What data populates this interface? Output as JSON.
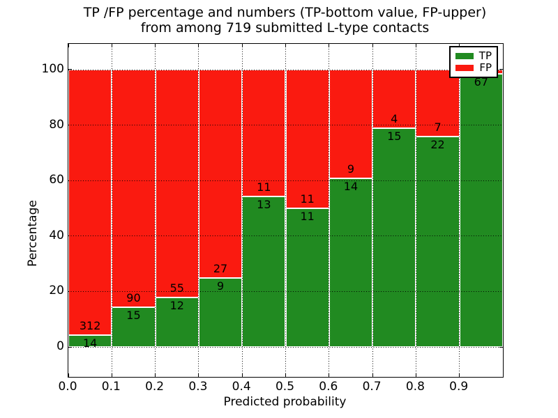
{
  "figure": {
    "title_line1": "TP /FP percentage and numbers (TP-bottom value, FP-upper)",
    "title_line2": "from among 719 submitted L-type contacts"
  },
  "axes": {
    "xlabel": "Predicted probability",
    "ylabel": "Percentage",
    "yticks": [
      0,
      20,
      40,
      60,
      80,
      100
    ],
    "xticks": [
      "0.0",
      "0.1",
      "0.2",
      "0.3",
      "0.4",
      "0.5",
      "0.6",
      "0.7",
      "0.8",
      "0.9"
    ]
  },
  "legend": {
    "items": [
      {
        "label": "TP",
        "color": "#218a21"
      },
      {
        "label": "FP",
        "color": "#fa1a10"
      }
    ]
  },
  "chart_data": {
    "type": "bar",
    "stacked": true,
    "orientation": "vertical",
    "title": "TP /FP percentage and numbers (TP-bottom value, FP-upper) from among 719 submitted L-type contacts",
    "xlabel": "Predicted probability",
    "ylabel": "Percentage",
    "total_submitted": 719,
    "bin_starts": [
      0.0,
      0.1,
      0.2,
      0.3,
      0.4,
      0.5,
      0.6,
      0.7,
      0.8,
      0.9
    ],
    "bin_width": 0.1,
    "xlim": [
      0.0,
      1.0
    ],
    "ylim_display": [
      -11,
      110
    ],
    "grid": "dotted",
    "legend_position": "upper right",
    "series": [
      {
        "name": "TP",
        "color": "#218a21",
        "counts": [
          14,
          15,
          12,
          9,
          13,
          11,
          14,
          15,
          22,
          67
        ]
      },
      {
        "name": "FP",
        "color": "#fa1a10",
        "counts": [
          312,
          90,
          55,
          27,
          11,
          11,
          9,
          4,
          7,
          1
        ]
      }
    ],
    "tp_percent": [
      4.3,
      14.3,
      17.9,
      25.0,
      54.2,
      50.0,
      60.9,
      78.9,
      75.9,
      98.5
    ],
    "bar_value_labels": {
      "tp": [
        "14",
        "15",
        "12",
        "9",
        "13",
        "11",
        "14",
        "15",
        "22",
        "67"
      ],
      "fp": [
        "312",
        "90",
        "55",
        "27",
        "11",
        "11",
        "9",
        "4",
        "7",
        ""
      ]
    }
  }
}
